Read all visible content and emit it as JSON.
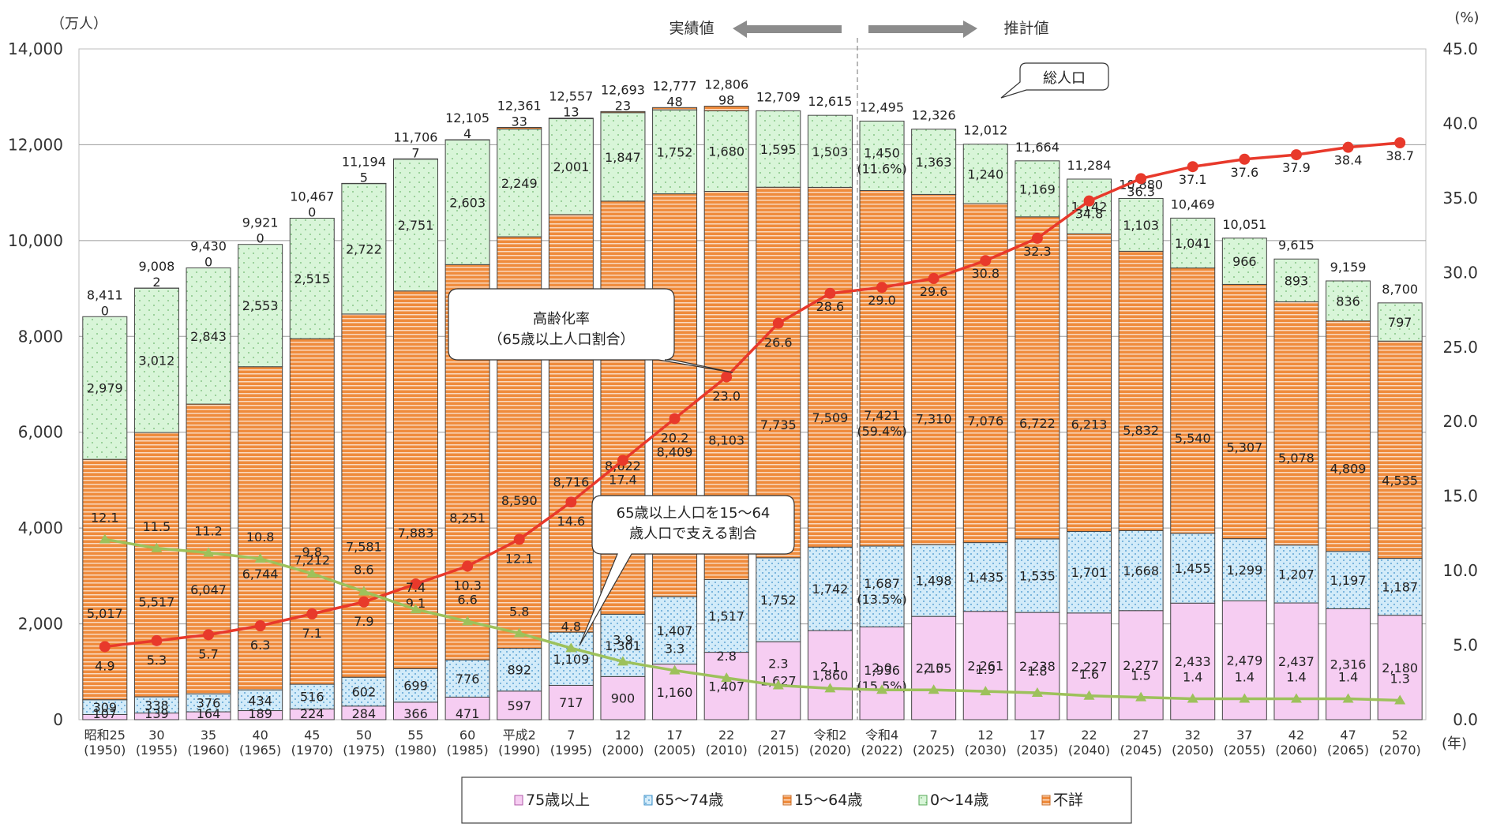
{
  "chart_data": {
    "type": "bar",
    "stacked": true,
    "y_unit_left": "（万人）",
    "y_unit_right": "(%)",
    "x_unit": "(年)",
    "ylim_left": [
      0,
      14000
    ],
    "ylim_right": [
      0,
      45
    ],
    "left_ticks": [
      "0",
      "2,000",
      "4,000",
      "6,000",
      "8,000",
      "10,000",
      "12,000",
      "14,000"
    ],
    "right_ticks": [
      "0.0",
      "5.0",
      "10.0",
      "15.0",
      "20.0",
      "25.0",
      "30.0",
      "35.0",
      "40.0",
      "45.0"
    ],
    "categories": [
      {
        "era": "昭和25",
        "year": "(1950)"
      },
      {
        "era": "30",
        "year": "(1955)"
      },
      {
        "era": "35",
        "year": "(1960)"
      },
      {
        "era": "40",
        "year": "(1965)"
      },
      {
        "era": "45",
        "year": "(1970)"
      },
      {
        "era": "50",
        "year": "(1975)"
      },
      {
        "era": "55",
        "year": "(1980)"
      },
      {
        "era": "60",
        "year": "(1985)"
      },
      {
        "era": "平成2",
        "year": "(1990)"
      },
      {
        "era": "7",
        "year": "(1995)"
      },
      {
        "era": "12",
        "year": "(2000)"
      },
      {
        "era": "17",
        "year": "(2005)"
      },
      {
        "era": "22",
        "year": "(2010)"
      },
      {
        "era": "27",
        "year": "(2015)"
      },
      {
        "era": "令和2",
        "year": "(2020)"
      },
      {
        "era": "令和4",
        "year": "(2022)"
      },
      {
        "era": "7",
        "year": "(2025)"
      },
      {
        "era": "12",
        "year": "(2030)"
      },
      {
        "era": "17",
        "year": "(2035)"
      },
      {
        "era": "22",
        "year": "(2040)"
      },
      {
        "era": "27",
        "year": "(2045)"
      },
      {
        "era": "32",
        "year": "(2050)"
      },
      {
        "era": "37",
        "year": "(2055)"
      },
      {
        "era": "42",
        "year": "(2060)"
      },
      {
        "era": "47",
        "year": "(2065)"
      },
      {
        "era": "52",
        "year": "(2070)"
      }
    ],
    "series": [
      {
        "name": "75歳以上",
        "color": "#f6cdf2",
        "values": [
          107,
          139,
          164,
          189,
          224,
          284,
          366,
          471,
          597,
          717,
          900,
          1160,
          1407,
          1627,
          1860,
          1936,
          2155,
          2261,
          2238,
          2227,
          2277,
          2433,
          2479,
          2437,
          2316,
          2180
        ],
        "labels": [
          "107",
          "139",
          "164",
          "189",
          "224",
          "284",
          "366",
          "471",
          "597",
          "717",
          "900",
          "1,160",
          "1,407",
          "1,627",
          "1,860",
          "1,936\n(15.5%)",
          "2,155",
          "2,261",
          "2,238",
          "2,227",
          "2,277",
          "2,433",
          "2,479",
          "2,437",
          "2,316",
          "2,180"
        ]
      },
      {
        "name": "65～74歳",
        "color": "#d2ebf9",
        "values": [
          309,
          338,
          376,
          434,
          516,
          602,
          699,
          776,
          892,
          1109,
          1301,
          1407,
          1517,
          1752,
          1742,
          1687,
          1498,
          1435,
          1535,
          1701,
          1668,
          1455,
          1299,
          1207,
          1197,
          1187
        ],
        "labels": [
          "309",
          "338",
          "376",
          "434",
          "516",
          "602",
          "699",
          "776",
          "892",
          "1,109",
          "1,301",
          "1,407",
          "1,517",
          "1,752",
          "1,742",
          "1,687\n(13.5%)",
          "1,498",
          "1,435",
          "1,535",
          "1,701",
          "1,668",
          "1,455",
          "1,299",
          "1,207",
          "1,197",
          "1,187"
        ]
      },
      {
        "name": "15～64歳",
        "color": "#ef8b3c",
        "values": [
          5017,
          5517,
          6047,
          6744,
          7212,
          7581,
          7883,
          8251,
          8590,
          8716,
          8622,
          8409,
          8103,
          7735,
          7509,
          7421,
          7310,
          7076,
          6722,
          6213,
          5832,
          5540,
          5307,
          5078,
          4809,
          4535
        ],
        "labels": [
          "5,017",
          "5,517",
          "6,047",
          "6,744",
          "7,212",
          "7,581",
          "7,883",
          "8,251",
          "8,590",
          "8,716",
          "8,622",
          "8,409",
          "8,103",
          "7,735",
          "7,509",
          "7,421\n(59.4%)",
          "7,310",
          "7,076",
          "6,722",
          "6,213",
          "5,832",
          "5,540",
          "5,307",
          "5,078",
          "4,809",
          "4,535"
        ]
      },
      {
        "name": "0～14歳",
        "color": "#d8f5d8",
        "values": [
          2979,
          3012,
          2843,
          2553,
          2515,
          2722,
          2751,
          2603,
          2249,
          2001,
          1847,
          1752,
          1680,
          1595,
          1503,
          1450,
          1363,
          1240,
          1169,
          1142,
          1103,
          1041,
          966,
          893,
          836,
          797
        ],
        "labels": [
          "2,979",
          "3,012",
          "2,843",
          "2,553",
          "2,515",
          "2,722",
          "2,751",
          "2,603",
          "2,249",
          "2,001",
          "1,847",
          "1,752",
          "1,680",
          "1,595",
          "1,503",
          "1,450\n(11.6%)",
          "1,363",
          "1,240",
          "1,169",
          "1,142",
          "1,103",
          "1,041",
          "966",
          "893",
          "836",
          "797"
        ]
      },
      {
        "name": "不詳",
        "color": "#ef8b3c",
        "values": [
          0,
          2,
          0,
          0,
          0,
          5,
          7,
          4,
          33,
          13,
          23,
          48,
          98,
          0,
          0,
          0,
          0,
          0,
          0,
          0,
          0,
          0,
          0,
          0,
          0,
          0
        ],
        "labels": [
          "0",
          "2",
          "0",
          "0",
          "0",
          "5",
          "7",
          "4",
          "33",
          "13",
          "23",
          "48",
          "98",
          "",
          "",
          "",
          "",
          "",
          "",
          "",
          "",
          "",
          "",
          "",
          "",
          ""
        ]
      }
    ],
    "totals": [
      "8,411",
      "9,008",
      "9,430",
      "9,921",
      "10,467",
      "11,194",
      "11,706",
      "12,105",
      "12,361",
      "12,557",
      "12,693",
      "12,777",
      "12,806",
      "12,709",
      "12,615",
      "12,495",
      "12,326",
      "12,012",
      "11,664",
      "11,284",
      "10,880",
      "10,469",
      "10,051",
      "9,615",
      "9,159",
      "8,700"
    ],
    "aging_rate": {
      "name": "高齢化率（65歳以上人口割合）",
      "color": "#e8392b",
      "values": [
        4.9,
        5.3,
        5.7,
        6.3,
        7.1,
        7.9,
        9.1,
        10.3,
        12.1,
        14.6,
        17.4,
        20.2,
        23.0,
        26.6,
        28.6,
        29.0,
        29.6,
        30.8,
        32.3,
        34.8,
        36.3,
        37.1,
        37.6,
        37.9,
        38.4,
        38.7
      ]
    },
    "support_ratio": {
      "name": "65歳以上人口を15～64歳人口で支える割合",
      "color": "#9dc15b",
      "values": [
        12.1,
        11.5,
        11.2,
        10.8,
        9.8,
        8.6,
        7.4,
        6.6,
        5.8,
        4.8,
        3.9,
        3.3,
        2.8,
        2.3,
        2.1,
        2.0,
        2.0,
        1.9,
        1.8,
        1.6,
        1.5,
        1.4,
        1.4,
        1.4,
        1.4,
        1.3
      ]
    },
    "annotations": {
      "actual": "実績値",
      "projected": "推計値",
      "total_population": "総人口",
      "aging_rate_line1": "高齢化率",
      "aging_rate_line2": "（65歳以上人口割合）",
      "support_line1": "65歳以上人口を15～64",
      "support_line2": "歳人口で支える割合"
    },
    "legend": [
      "75歳以上",
      "65～74歳",
      "15～64歳",
      "0～14歳",
      "不詳"
    ],
    "legend_position": "bottom"
  }
}
